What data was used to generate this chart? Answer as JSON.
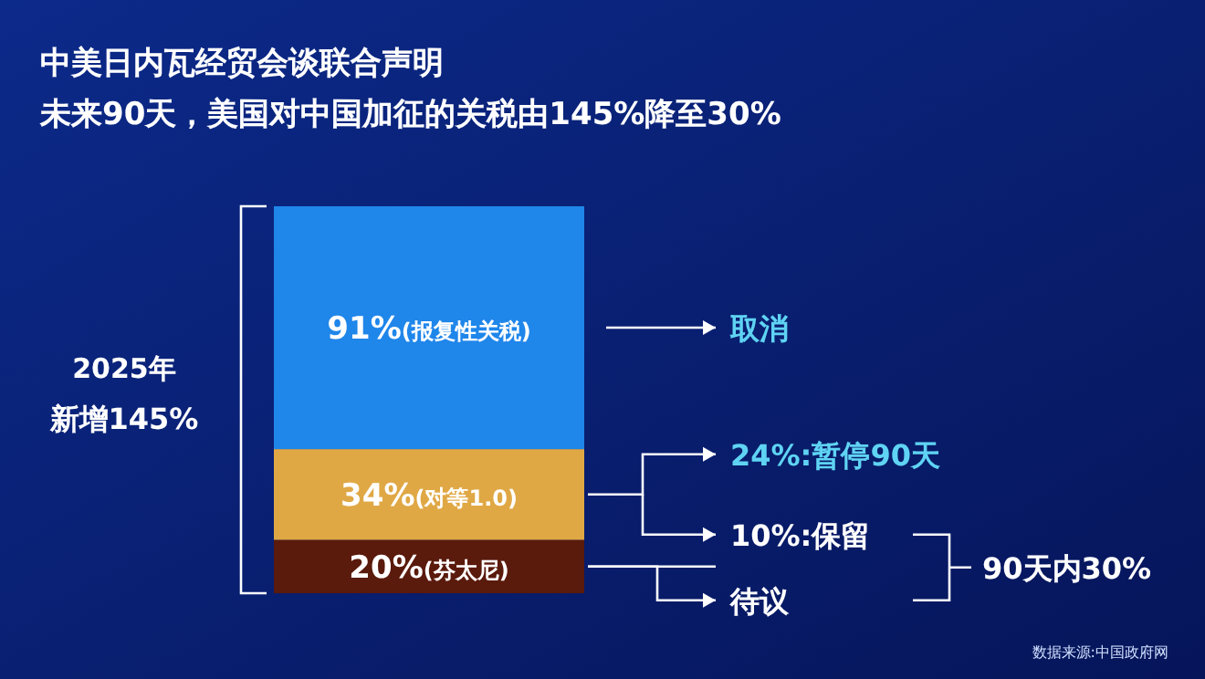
{
  "chart_data": {
    "type": "bar",
    "stacked": true,
    "title": "中美日内瓦经贸会谈联合声明",
    "subtitle": "未来90天，美国对中国加征的关税由145%降至30%",
    "categories": [
      null
    ],
    "series": [
      {
        "name": "(芬太尼)",
        "color": "#5a1a0c",
        "values": [
          20
        ],
        "value_labels": [
          "20%"
        ]
      },
      {
        "name": "(对等1.0)",
        "color": "#e0a845",
        "values": [
          34
        ],
        "value_labels": [
          "34%"
        ]
      },
      {
        "name": "(报复性关税)",
        "color": "#1f86ea",
        "values": [
          91
        ],
        "value_labels": [
          "91%"
        ]
      }
    ],
    "annotations": [
      "2025年",
      "新增145%",
      "取消",
      "24%:暂停90天",
      "10%:保留",
      "待议",
      "90天内30%",
      "数据来源:中国政府网"
    ]
  }
}
